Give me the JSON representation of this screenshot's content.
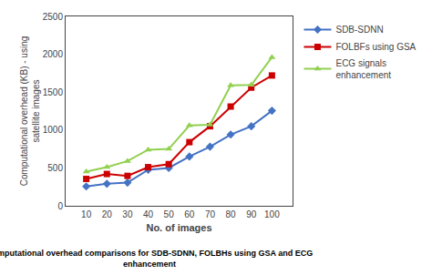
{
  "chart_data": {
    "type": "line",
    "x": [
      10,
      20,
      30,
      40,
      50,
      60,
      70,
      80,
      90,
      100
    ],
    "series": [
      {
        "name": "SDB-SDNN",
        "color": "#4472C4",
        "marker": "diamond",
        "values": [
          255,
          290,
          305,
          475,
          500,
          650,
          780,
          940,
          1050,
          1255
        ]
      },
      {
        "name": "FOLBFs using GSA",
        "color": "#CC0000",
        "marker": "square",
        "values": [
          355,
          420,
          395,
          510,
          550,
          840,
          1050,
          1310,
          1560,
          1720
        ]
      },
      {
        "name": "ECG signals\nenhancement",
        "color": "#92D050",
        "marker": "triangle-up",
        "values": [
          450,
          510,
          590,
          740,
          750,
          1060,
          1070,
          1590,
          1595,
          1960
        ]
      }
    ],
    "xlabel": "No. of images",
    "ylabel": "Computational overhead (KB) - using\nsatellite images",
    "caption": "Computational overhead comparisons for SDB-SDNN, FOLBHs using GSA and ECG\nenhancement",
    "xlim": [
      0,
      110
    ],
    "xticks": [
      10,
      20,
      30,
      40,
      50,
      60,
      70,
      80,
      90,
      100
    ],
    "ylim": [
      0,
      2500
    ],
    "yticks": [
      0,
      500,
      1000,
      1500,
      2000,
      2500
    ],
    "grid": false,
    "legend": "right"
  }
}
